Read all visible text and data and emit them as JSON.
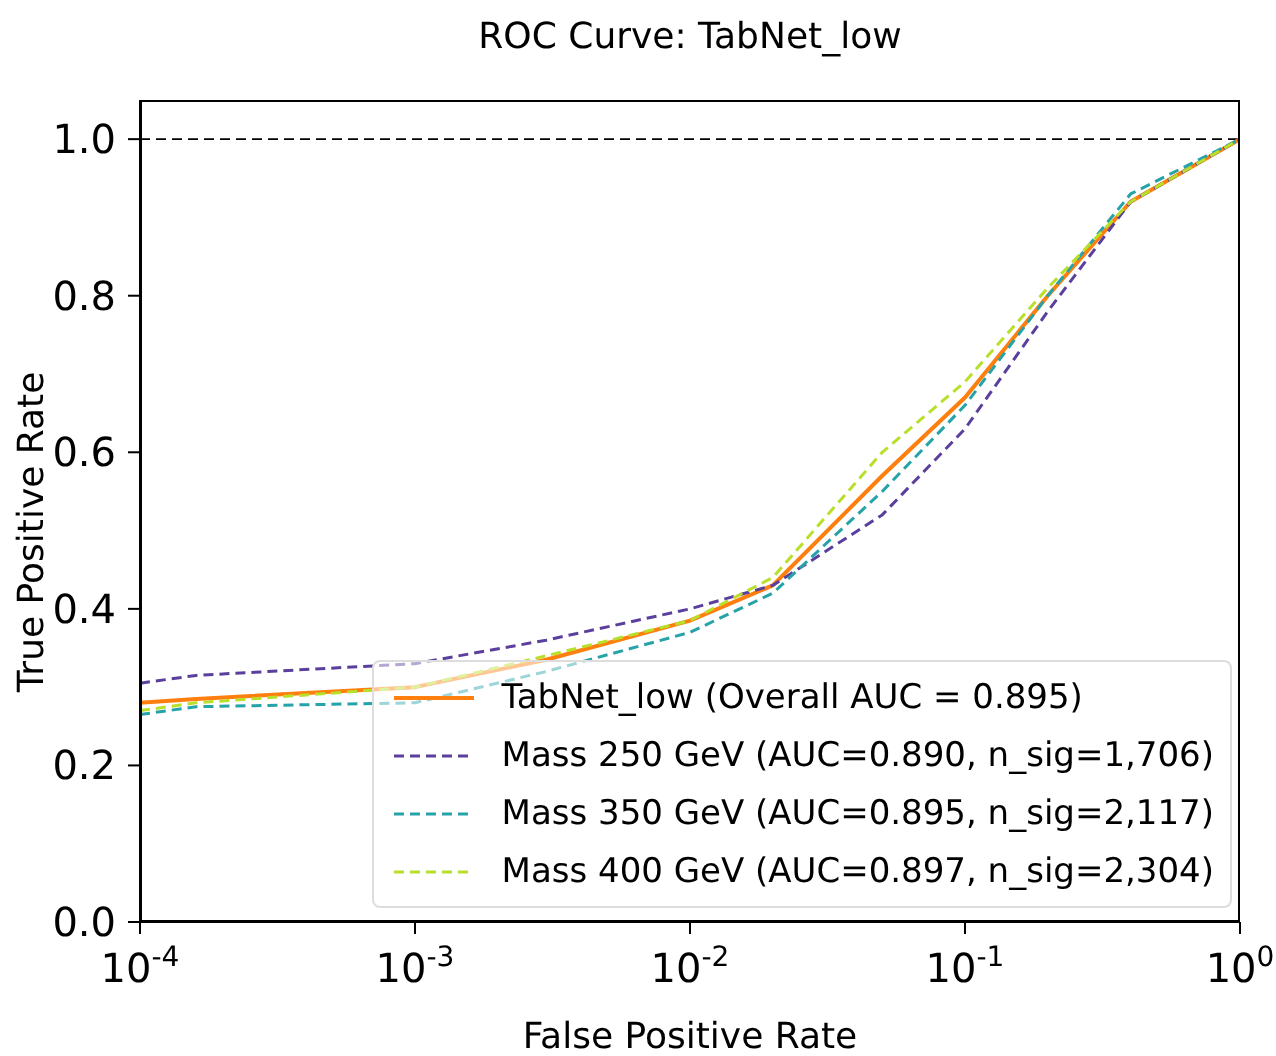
{
  "chart_data": {
    "type": "line",
    "title": "ROC Curve: TabNet_low",
    "xlabel": "False Positive Rate",
    "ylabel": "True Positive Rate",
    "log": "x",
    "grid": false,
    "legend": "bottom right",
    "marker": "none",
    "x": [
      0.0001,
      0.00016,
      0.001,
      0.003,
      0.01,
      0.02,
      0.05,
      0.1,
      0.2,
      0.4,
      1
    ],
    "series": [
      {
        "name": "TabNet_low (Overall AUC = 0.895)",
        "color": "#ff7f0e",
        "line_style": "solid",
        "values": [
          0.28,
          0.285,
          0.3,
          0.335,
          0.385,
          0.43,
          0.57,
          0.67,
          0.8,
          0.92,
          1.0
        ]
      },
      {
        "name": "Mass 250 GeV (AUC=0.890, n_sig=1,706)",
        "color": "#5b3f9c",
        "line_style": "dashed",
        "values": [
          0.305,
          0.315,
          0.33,
          0.36,
          0.4,
          0.43,
          0.52,
          0.63,
          0.78,
          0.92,
          1.0
        ]
      },
      {
        "name": "Mass 350 GeV (AUC=0.895, n_sig=2,117)",
        "color": "#26a3a8",
        "line_style": "dashed",
        "values": [
          0.265,
          0.275,
          0.28,
          0.32,
          0.37,
          0.42,
          0.55,
          0.66,
          0.8,
          0.93,
          1.0
        ]
      },
      {
        "name": "Mass 400 GeV (AUC=0.897, n_sig=2,304)",
        "color": "#b8df2a",
        "line_style": "dashed",
        "values": [
          0.27,
          0.28,
          0.3,
          0.34,
          0.385,
          0.44,
          0.6,
          0.69,
          0.81,
          0.92,
          1.0
        ]
      }
    ],
    "xlim": [
      0.0001,
      1
    ],
    "xticks": [
      {
        "value": 0.0001,
        "label": "10$^{-4}$"
      },
      {
        "value": 0.001,
        "label": "10$^{-3}$"
      },
      {
        "value": 0.01,
        "label": "10$^{-2}$"
      },
      {
        "value": 0.1,
        "label": "10$^{-1}$"
      },
      {
        "value": 1,
        "label": "10$^{0}$"
      }
    ],
    "ylim": [
      0,
      1.05
    ],
    "yticks": [
      {
        "value": 0,
        "label": "0.0"
      },
      0.2,
      0.4,
      0.6,
      0.8,
      {
        "value": 1,
        "label": "1.0"
      }
    ],
    "ref_lines": [
      {
        "axis": "y",
        "value": 1.0,
        "color": "#000000",
        "line_style": "dashed"
      }
    ]
  }
}
